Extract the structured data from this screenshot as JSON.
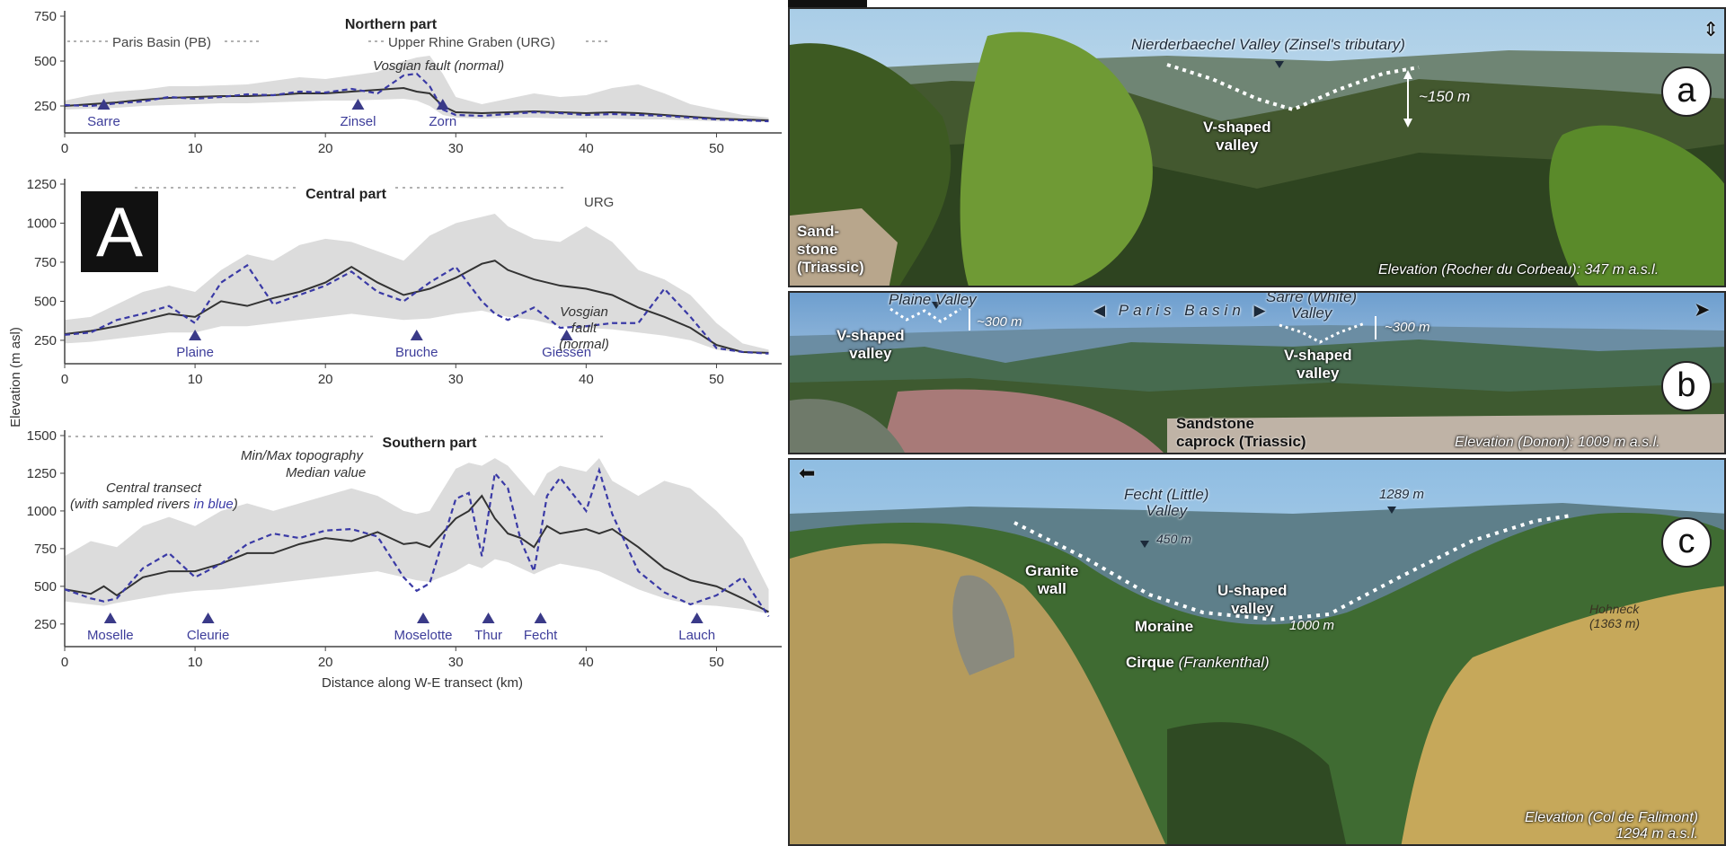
{
  "panel_a_label": "A",
  "panel_b_label": "B",
  "ylabel": "Elevation (m asl)",
  "xlabel": "Distance along W-E transect (km)",
  "colors": {
    "median": "#333333",
    "river": "#3a3aa6",
    "range": "#dcdcdc",
    "river_label": "#3d3d9a"
  },
  "chart_data": [
    {
      "type": "area",
      "title": "Northern part",
      "ylim": [
        100,
        750
      ],
      "xlim": [
        0,
        55
      ],
      "yticks": [
        250,
        500,
        750
      ],
      "xticks": [
        0,
        10,
        20,
        30,
        40,
        50
      ],
      "region_labels": [
        "Paris Basin (PB)",
        "Upper Rhine Graben (URG)"
      ],
      "annotations": [
        "Vosgian fault (normal)"
      ],
      "rivers": [
        {
          "name": "Sarre",
          "x": 3
        },
        {
          "name": "Zinsel",
          "x": 22.5
        },
        {
          "name": "Zorn",
          "x": 29
        }
      ],
      "x": [
        0,
        2,
        4,
        6,
        8,
        10,
        12,
        14,
        16,
        18,
        20,
        22,
        24,
        26,
        27,
        28,
        29,
        30,
        32,
        34,
        36,
        38,
        40,
        42,
        44,
        46,
        48,
        50,
        52,
        54
      ],
      "series": [
        {
          "name": "Median value",
          "values": [
            250,
            260,
            270,
            285,
            295,
            300,
            305,
            305,
            310,
            320,
            320,
            330,
            340,
            350,
            330,
            320,
            250,
            215,
            210,
            215,
            220,
            215,
            210,
            215,
            210,
            200,
            190,
            180,
            175,
            170
          ]
        },
        {
          "name": "Central transect",
          "values": [
            255,
            250,
            265,
            275,
            300,
            290,
            300,
            315,
            310,
            330,
            325,
            345,
            320,
            420,
            430,
            360,
            230,
            200,
            195,
            205,
            215,
            210,
            200,
            205,
            200,
            195,
            185,
            175,
            170,
            165
          ]
        },
        {
          "name": "Min",
          "values": [
            230,
            235,
            240,
            250,
            255,
            260,
            265,
            265,
            270,
            275,
            280,
            280,
            285,
            290,
            280,
            250,
            200,
            185,
            180,
            185,
            185,
            180,
            180,
            180,
            175,
            175,
            170,
            165,
            165,
            160
          ]
        },
        {
          "name": "Max",
          "values": [
            280,
            310,
            330,
            340,
            360,
            360,
            365,
            370,
            390,
            410,
            400,
            420,
            440,
            500,
            520,
            530,
            430,
            300,
            260,
            290,
            320,
            300,
            310,
            350,
            370,
            320,
            260,
            230,
            200,
            185
          ]
        }
      ]
    },
    {
      "type": "area",
      "title": "Central part",
      "ylim": [
        100,
        1250
      ],
      "xlim": [
        0,
        55
      ],
      "yticks": [
        250,
        500,
        750,
        1000,
        1250
      ],
      "xticks": [
        0,
        10,
        20,
        30,
        40,
        50
      ],
      "region_labels": [
        "URG"
      ],
      "annotations": [
        "Vosgian",
        "fault",
        "(normal)"
      ],
      "rivers": [
        {
          "name": "Plaine",
          "x": 10
        },
        {
          "name": "Bruche",
          "x": 27
        },
        {
          "name": "Giessen",
          "x": 38.5
        }
      ],
      "x": [
        0,
        2,
        4,
        6,
        8,
        10,
        12,
        14,
        16,
        18,
        20,
        22,
        24,
        26,
        28,
        30,
        32,
        33,
        34,
        36,
        38,
        40,
        42,
        44,
        46,
        48,
        50,
        52,
        54
      ],
      "series": [
        {
          "name": "Median value",
          "values": [
            290,
            310,
            340,
            380,
            420,
            400,
            500,
            470,
            520,
            560,
            620,
            720,
            620,
            540,
            580,
            650,
            740,
            760,
            700,
            640,
            600,
            580,
            540,
            460,
            400,
            330,
            220,
            175,
            170
          ]
        },
        {
          "name": "Central transect",
          "values": [
            285,
            300,
            380,
            420,
            470,
            360,
            620,
            730,
            480,
            540,
            600,
            690,
            560,
            500,
            620,
            720,
            500,
            420,
            380,
            460,
            330,
            340,
            360,
            360,
            580,
            400,
            200,
            175,
            165
          ]
        },
        {
          "name": "Min",
          "values": [
            230,
            240,
            260,
            280,
            300,
            300,
            340,
            340,
            360,
            380,
            400,
            420,
            400,
            380,
            390,
            420,
            440,
            420,
            400,
            380,
            340,
            330,
            320,
            300,
            280,
            250,
            190,
            170,
            165
          ]
        },
        {
          "name": "Max",
          "values": [
            380,
            400,
            480,
            560,
            600,
            560,
            700,
            800,
            760,
            860,
            900,
            880,
            820,
            760,
            920,
            1000,
            1040,
            1060,
            980,
            900,
            880,
            980,
            880,
            700,
            640,
            540,
            360,
            230,
            190
          ]
        }
      ]
    },
    {
      "type": "area",
      "title": "Southern part",
      "ylim": [
        100,
        1500
      ],
      "xlim": [
        0,
        55
      ],
      "yticks": [
        250,
        500,
        750,
        1000,
        1250,
        1500
      ],
      "xticks": [
        0,
        10,
        20,
        30,
        40,
        50
      ],
      "annotations": [
        "Min/Max topography",
        "Median value",
        "Central transect",
        "(with sampled rivers",
        "in blue",
        ")"
      ],
      "rivers": [
        {
          "name": "Moselle",
          "x": 3.5
        },
        {
          "name": "Cleurie",
          "x": 11
        },
        {
          "name": "Moselotte",
          "x": 27.5
        },
        {
          "name": "Thur",
          "x": 32.5
        },
        {
          "name": "Fecht",
          "x": 36.5
        },
        {
          "name": "Lauch",
          "x": 48.5
        }
      ],
      "x": [
        0,
        2,
        3,
        4,
        6,
        8,
        10,
        12,
        14,
        16,
        18,
        20,
        22,
        24,
        26,
        27,
        28,
        30,
        31,
        32,
        33,
        34,
        35,
        36,
        37,
        38,
        40,
        41,
        42,
        44,
        46,
        48,
        50,
        52,
        54
      ],
      "series": [
        {
          "name": "Median value",
          "values": [
            480,
            450,
            500,
            440,
            560,
            600,
            600,
            650,
            720,
            720,
            780,
            820,
            800,
            860,
            780,
            790,
            760,
            950,
            1000,
            1100,
            950,
            850,
            820,
            760,
            900,
            850,
            880,
            850,
            880,
            760,
            620,
            540,
            500,
            420,
            330
          ]
        },
        {
          "name": "Central transect",
          "values": [
            480,
            420,
            400,
            420,
            620,
            720,
            560,
            650,
            780,
            850,
            820,
            870,
            880,
            830,
            560,
            470,
            520,
            1080,
            1120,
            700,
            1250,
            1150,
            800,
            600,
            1100,
            1220,
            1000,
            1270,
            980,
            600,
            460,
            380,
            440,
            560,
            300
          ]
        },
        {
          "name": "Min",
          "values": [
            400,
            380,
            370,
            390,
            420,
            450,
            470,
            480,
            500,
            520,
            540,
            560,
            580,
            600,
            560,
            540,
            530,
            600,
            650,
            620,
            680,
            660,
            620,
            580,
            620,
            650,
            620,
            600,
            560,
            480,
            420,
            380,
            370,
            350,
            320
          ]
        },
        {
          "name": "Max",
          "values": [
            700,
            800,
            780,
            760,
            900,
            960,
            900,
            1000,
            1050,
            1000,
            1050,
            1100,
            1150,
            1100,
            1000,
            980,
            1000,
            1280,
            1320,
            1300,
            1350,
            1300,
            1200,
            1100,
            1250,
            1300,
            1260,
            1350,
            1200,
            1100,
            1200,
            1150,
            1000,
            820,
            480
          ]
        }
      ]
    }
  ],
  "photos": [
    {
      "letter": "a",
      "title": "Nierderbaechel Valley (Zinsel's tributary)",
      "valley": [
        "V-shaped",
        "valley"
      ],
      "depth": "~150 m",
      "rock": [
        "Sand-",
        "stone",
        "(Triassic)"
      ],
      "elevation": "Elevation (Rocher du Corbeau): 347 m a.s.l."
    },
    {
      "letter": "b",
      "basin": "Paris Basin",
      "valley1_title": "Plaine Valley",
      "valley1_depth": "~300 m",
      "valley1_shape": [
        "V-shaped",
        "valley"
      ],
      "valley2_title": [
        "Sarre (White)",
        "Valley"
      ],
      "valley2_depth": "~300 m",
      "valley2_shape": [
        "V-shaped",
        "valley"
      ],
      "rock": [
        "Sandstone",
        "caprock (Triassic)"
      ],
      "elevation": "Elevation (Donon): 1009 m a.s.l."
    },
    {
      "letter": "c",
      "valley_title": [
        "Fecht (Little)",
        "Valley"
      ],
      "depth": "450 m",
      "peak": "1289 m",
      "granite": [
        "Granite",
        "wall"
      ],
      "valley_shape": [
        "U-shaped",
        "valley"
      ],
      "moraine": "Moraine",
      "cirque": "Cirque",
      "cirque_name": "(Frankenthal)",
      "floor": "1000 m",
      "hohneck": [
        "Hohneck",
        "(1363 m)"
      ],
      "elevation": [
        "Elevation (Col de Falimont)",
        "1294 m a.s.l."
      ]
    }
  ]
}
